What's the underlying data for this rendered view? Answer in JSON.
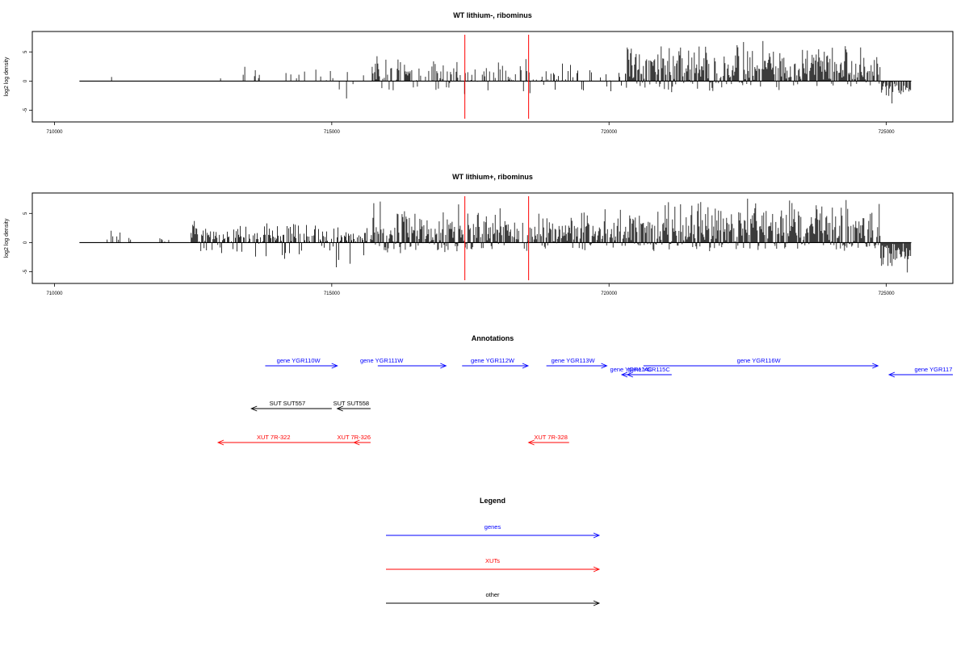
{
  "chart_data": [
    {
      "type": "bar",
      "title": "WT lithium-, ribominus",
      "xlabel": "",
      "ylabel": "log2 log density",
      "xlim": [
        709600,
        726200
      ],
      "ylim": [
        -7,
        8.5
      ],
      "x_ticks": [
        710000,
        715000,
        720000,
        725000
      ],
      "x_tick_labels": [
        "710000",
        "715000",
        "720000",
        "725000"
      ],
      "y_ticks": [
        -5,
        0,
        5
      ],
      "y_tick_labels": [
        "-5",
        "0",
        "5"
      ],
      "grid": false,
      "baseline": {
        "x_start": 710450,
        "x_end": 725450,
        "color": "#000000"
      },
      "marker_lines": {
        "x": [
          717400,
          718550
        ],
        "color": "#ff0000"
      },
      "segments": [
        {
          "x_start": 711000,
          "x_end": 711300,
          "ymin": 0,
          "ymax": 1.8,
          "density": 0.2,
          "seed": 11
        },
        {
          "x_start": 712980,
          "x_end": 715650,
          "ymin": -3.5,
          "ymax": 3,
          "density": 0.12,
          "seed": 12
        },
        {
          "x_start": 715700,
          "x_end": 717350,
          "ymin": -2.5,
          "ymax": 5,
          "density": 0.55,
          "seed": 13
        },
        {
          "x_start": 717350,
          "x_end": 719000,
          "ymin": -3,
          "ymax": 4,
          "density": 0.4,
          "seed": 14
        },
        {
          "x_start": 719000,
          "x_end": 720300,
          "ymin": -3,
          "ymax": 3.5,
          "density": 0.3,
          "seed": 15
        },
        {
          "x_start": 720300,
          "x_end": 724900,
          "ymin": -2,
          "ymax": 7,
          "density": 0.95,
          "seed": 16
        },
        {
          "x_start": 724900,
          "x_end": 725450,
          "ymin": -4.5,
          "ymax": 0,
          "density": 0.9,
          "seed": 17
        }
      ]
    },
    {
      "type": "bar",
      "title": "WT lithium+, ribominus",
      "xlabel": "",
      "ylabel": "log2 log density",
      "xlim": [
        709600,
        726200
      ],
      "ylim": [
        -7,
        8.5
      ],
      "x_ticks": [
        710000,
        715000,
        720000,
        725000
      ],
      "x_tick_labels": [
        "710000",
        "715000",
        "720000",
        "725000"
      ],
      "y_ticks": [
        -5,
        0,
        5
      ],
      "y_tick_labels": [
        "-5",
        "0",
        "5"
      ],
      "grid": false,
      "baseline": {
        "x_start": 710450,
        "x_end": 725450,
        "color": "#000000"
      },
      "marker_lines": {
        "x": [
          717400,
          718550
        ],
        "color": "#ff0000"
      },
      "segments": [
        {
          "x_start": 710950,
          "x_end": 711400,
          "ymin": 0,
          "ymax": 2.5,
          "density": 0.35,
          "seed": 21
        },
        {
          "x_start": 711900,
          "x_end": 712100,
          "ymin": 0,
          "ymax": 2,
          "density": 0.4,
          "seed": 22
        },
        {
          "x_start": 712450,
          "x_end": 713000,
          "ymin": -3,
          "ymax": 4,
          "density": 0.9,
          "seed": 23
        },
        {
          "x_start": 713000,
          "x_end": 715650,
          "ymin": -4.5,
          "ymax": 3.5,
          "density": 0.75,
          "seed": 24
        },
        {
          "x_start": 715700,
          "x_end": 717350,
          "ymin": -2,
          "ymax": 7.5,
          "density": 1.0,
          "seed": 25
        },
        {
          "x_start": 717350,
          "x_end": 720300,
          "ymin": -2.5,
          "ymax": 6,
          "density": 0.85,
          "seed": 26
        },
        {
          "x_start": 720300,
          "x_end": 724900,
          "ymin": -1.5,
          "ymax": 8,
          "density": 1.0,
          "seed": 27
        },
        {
          "x_start": 724900,
          "x_end": 725450,
          "ymin": -6,
          "ymax": 0,
          "density": 1.0,
          "seed": 28
        }
      ]
    },
    {
      "type": "annotation_track",
      "title": "Annotations",
      "xlim": [
        709600,
        726200
      ],
      "features": [
        {
          "label": "gene YGR110W",
          "x_start": 713800,
          "x_end": 715100,
          "row": 0,
          "strand": "+",
          "color": "#0000ff",
          "label_x": 714400
        },
        {
          "label": "gene YGR111W",
          "x_start": 715830,
          "x_end": 717060,
          "row": 0,
          "strand": "+",
          "color": "#0000ff",
          "label_x": 715900
        },
        {
          "label": "gene YGR112W",
          "x_start": 717350,
          "x_end": 718540,
          "row": 0,
          "strand": "+",
          "color": "#0000ff",
          "label_x": 717900
        },
        {
          "label": "gene YGR113W",
          "x_start": 718870,
          "x_end": 719960,
          "row": 0,
          "strand": "+",
          "color": "#0000ff",
          "label_x": 719350
        },
        {
          "label": "gene YGR114C",
          "x_start": 720230,
          "x_end": 720850,
          "row": 1,
          "strand": "-",
          "color": "#0000ff",
          "label_x": 720400
        },
        {
          "label": "gene YGR115C",
          "x_start": 720330,
          "x_end": 721130,
          "row": 1,
          "strand": "-",
          "color": "#0000ff",
          "label_x": 720720
        },
        {
          "label": "gene YGR116W",
          "x_start": 720620,
          "x_end": 724850,
          "row": 0,
          "strand": "+",
          "color": "#0000ff",
          "label_x": 722700
        },
        {
          "label": "gene YGR117",
          "x_start": 725050,
          "x_end": 726200,
          "row": 1,
          "strand": "-",
          "color": "#0000ff",
          "label_x": 725850
        },
        {
          "label": "SUT SUT557",
          "x_start": 713550,
          "x_end": 715000,
          "row": 2,
          "strand": "-",
          "color": "#000000",
          "label_x": 714200
        },
        {
          "label": "SUT SUT558",
          "x_start": 715100,
          "x_end": 715700,
          "row": 2,
          "strand": "-",
          "color": "#000000",
          "label_x": 715350
        },
        {
          "label": "XUT 7R-322",
          "x_start": 712950,
          "x_end": 715400,
          "row": 3,
          "strand": "-",
          "color": "#ff0000",
          "label_x": 713950
        },
        {
          "label": "XUT 7R-326",
          "x_start": 715400,
          "x_end": 715700,
          "row": 3,
          "strand": "-",
          "color": "#ff0000",
          "label_x": 715400
        },
        {
          "label": "XUT 7R-328",
          "x_start": 718550,
          "x_end": 719280,
          "row": 3,
          "strand": "-",
          "color": "#ff0000",
          "label_x": 718950
        }
      ]
    }
  ],
  "legend": {
    "title": "Legend",
    "items": [
      {
        "label": "genes",
        "color": "#0000ff"
      },
      {
        "label": "XUTs",
        "color": "#ff0000"
      },
      {
        "label": "other",
        "color": "#000000"
      }
    ]
  }
}
